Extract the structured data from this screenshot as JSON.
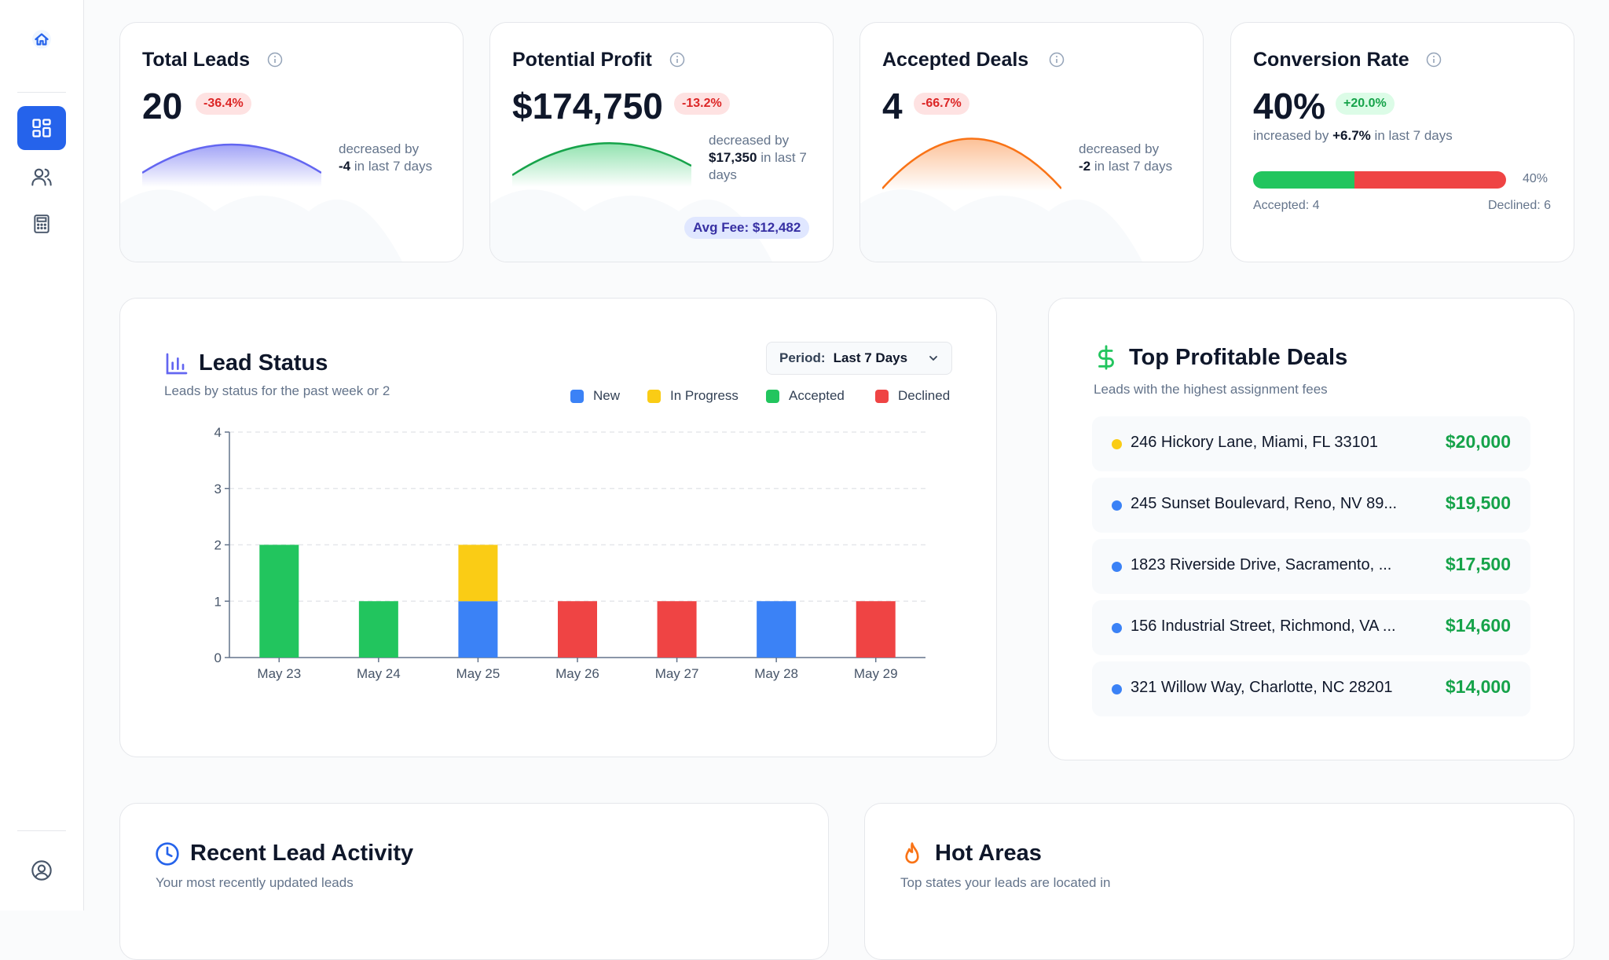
{
  "sidebar": {
    "icons": [
      "home-icon",
      "dashboard-icon",
      "users-icon",
      "calculator-icon",
      "account-icon"
    ]
  },
  "stats": {
    "total_leads": {
      "title": "Total Leads",
      "value": "20",
      "change": "-36.4%",
      "note_prefix": "decreased by",
      "note_value": "-4",
      "note_suffix": "in last 7 days"
    },
    "potential_profit": {
      "title": "Potential Profit",
      "value": "$174,750",
      "change": "-13.2%",
      "note_prefix": "decreased by",
      "note_value": "$17,350",
      "note_suffix": "in last 7",
      "note_suffix2": "days",
      "avg_fee": "Avg Fee: $12,482"
    },
    "accepted_deals": {
      "title": "Accepted Deals",
      "value": "4",
      "change": "-66.7%",
      "note_prefix": "decreased by",
      "note_value": "-2",
      "note_suffix": "in last 7 days"
    },
    "conversion_rate": {
      "title": "Conversion Rate",
      "value": "40%",
      "change": "+20.0%",
      "note_prefix": "increased by",
      "note_value": "+6.7%",
      "note_suffix": "in last 7 days",
      "bar_percent": "40%",
      "accepted_fraction": 0.4,
      "accepted_label": "Accepted: 4",
      "declined_label": "Declined: 6"
    }
  },
  "lead_status": {
    "title": "Lead Status",
    "subtitle": "Leads by status for the past week or 2",
    "period_label": "Period:",
    "period_value": "Last 7 Days",
    "legend": [
      {
        "label": "New",
        "color": "#3b82f6"
      },
      {
        "label": "In Progress",
        "color": "#facc15"
      },
      {
        "label": "Accepted",
        "color": "#22c55e"
      },
      {
        "label": "Declined",
        "color": "#ef4444"
      }
    ]
  },
  "chart_data": {
    "type": "bar",
    "stacked": true,
    "categories": [
      "May 23",
      "May 24",
      "May 25",
      "May 26",
      "May 27",
      "May 28",
      "May 29"
    ],
    "series": [
      {
        "name": "New",
        "color": "#3b82f6",
        "values": [
          0,
          0,
          1,
          0,
          0,
          1,
          0
        ]
      },
      {
        "name": "In Progress",
        "color": "#facc15",
        "values": [
          0,
          0,
          1,
          0,
          0,
          0,
          0
        ]
      },
      {
        "name": "Accepted",
        "color": "#22c55e",
        "values": [
          2,
          1,
          0,
          0,
          0,
          0,
          0
        ]
      },
      {
        "name": "Declined",
        "color": "#ef4444",
        "values": [
          0,
          0,
          0,
          1,
          1,
          0,
          1
        ]
      }
    ],
    "yticks": [
      0,
      1,
      2,
      3,
      4
    ],
    "ylim": [
      0,
      4
    ],
    "grid": true,
    "legend": "top-right"
  },
  "top_deals": {
    "title": "Top Profitable Deals",
    "subtitle": "Leads with the highest assignment fees",
    "items": [
      {
        "address": "246 Hickory Lane, Miami, FL 33101",
        "amount": "$20,000",
        "color": "#facc15"
      },
      {
        "address": "245 Sunset Boulevard, Reno, NV 89...",
        "amount": "$19,500",
        "color": "#3b82f6"
      },
      {
        "address": "1823 Riverside Drive, Sacramento, ...",
        "amount": "$17,500",
        "color": "#3b82f6"
      },
      {
        "address": "156 Industrial Street, Richmond, VA ...",
        "amount": "$14,600",
        "color": "#3b82f6"
      },
      {
        "address": "321 Willow Way, Charlotte, NC 28201",
        "amount": "$14,000",
        "color": "#3b82f6"
      }
    ]
  },
  "recent_activity": {
    "title": "Recent Lead Activity",
    "subtitle": "Your most recently updated leads"
  },
  "hot_areas": {
    "title": "Hot Areas",
    "subtitle": "Top states your leads are located in"
  },
  "colors": {
    "primary": "#2563eb",
    "green": "#22c55e",
    "red": "#ef4444",
    "amber": "#f97316",
    "indigo": "#6366f1"
  }
}
